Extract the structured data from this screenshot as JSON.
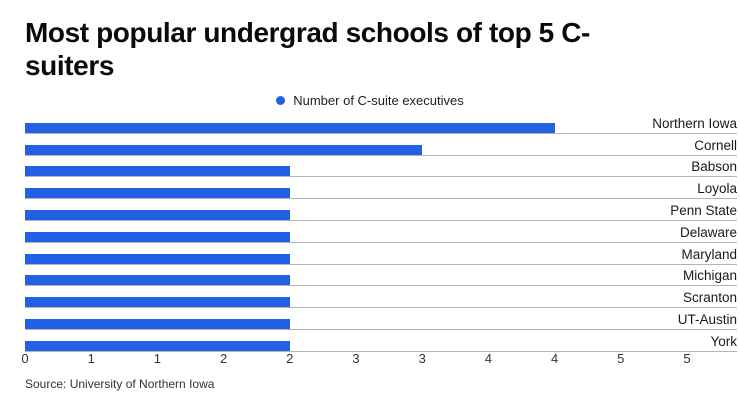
{
  "title_lines": [
    "Most popular undergrad schools of top 5 C-",
    "suiters"
  ],
  "legend": {
    "label": "Number of C-suite executives"
  },
  "source": "Source: University of Northern Iowa",
  "colors": {
    "bar": "#2261e5",
    "row_line": "#b3b3b3"
  },
  "chart_data": {
    "type": "bar",
    "orientation": "horizontal",
    "title": "Most popular undergrad schools of top 5 C-suiters",
    "xlabel": "",
    "ylabel": "",
    "categories": [
      "Northern Iowa",
      "Cornell",
      "Babson",
      "Loyola",
      "Penn State",
      "Delaware",
      "Maryland",
      "Michigan",
      "Scranton",
      "UT-Austin",
      "York"
    ],
    "values": [
      4,
      3,
      2,
      2,
      2,
      2,
      2,
      2,
      2,
      2,
      2
    ],
    "xlim": [
      0,
      5
    ],
    "x_tick_labels": [
      "0",
      "1",
      "1",
      "2",
      "2",
      "3",
      "3",
      "4",
      "4",
      "5",
      "5"
    ],
    "grid": "row-baselines",
    "legend_entries": [
      "Number of C-suite executives"
    ],
    "legend_position": "top-center"
  }
}
